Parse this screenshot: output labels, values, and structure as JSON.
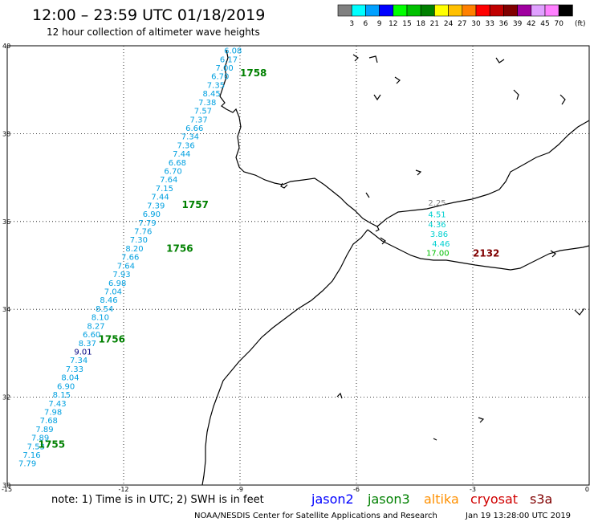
{
  "header": {
    "title": "12:00 – 23:59 UTC 01/18/2019",
    "subtitle": "12 hour collection of altimeter wave heights"
  },
  "colorbar": {
    "unit": "(ft)",
    "bins": [
      {
        "label": "3",
        "color": "#808080"
      },
      {
        "label": "6",
        "color": "#00ffff"
      },
      {
        "label": "9",
        "color": "#00a0ff"
      },
      {
        "label": "12",
        "color": "#0000ff"
      },
      {
        "label": "15",
        "color": "#00ff00"
      },
      {
        "label": "18",
        "color": "#00c000"
      },
      {
        "label": "21",
        "color": "#008000"
      },
      {
        "label": "24",
        "color": "#ffff00"
      },
      {
        "label": "27",
        "color": "#ffc000"
      },
      {
        "label": "30",
        "color": "#ff8000"
      },
      {
        "label": "33",
        "color": "#ff0000"
      },
      {
        "label": "36",
        "color": "#c00000"
      },
      {
        "label": "39",
        "color": "#800000"
      },
      {
        "label": "42",
        "color": "#a000a0"
      },
      {
        "label": "45",
        "color": "#e0a0ff"
      },
      {
        "label": "70",
        "color": "#ff80ff"
      },
      {
        "label": "",
        "color": "#000000"
      }
    ]
  },
  "axes": {
    "y_ticks": [
      "40",
      "38",
      "36",
      "34",
      "32",
      "30"
    ],
    "x_ticks": [
      "-15",
      "-12",
      "-9",
      "-6",
      "-3",
      "0"
    ]
  },
  "tracks": [
    {
      "id": "jason3-track",
      "color": "#00a0e0",
      "values": [
        "6.08",
        "6.17",
        "7.00",
        "6.70",
        "7.35",
        "8.45",
        "7.38",
        "7.57",
        "7.37",
        "6.66",
        "7.34",
        "7.36",
        "7.44",
        "6.68",
        "6.70",
        "7.64",
        "7.15",
        "7.44",
        "7.39",
        "6.90",
        "7.79",
        "7.76",
        "7.30",
        "8.20",
        "7.66",
        "7.64",
        "7.93",
        "6.98",
        "7.04",
        "8.46",
        "8.54",
        "8.10",
        "8.27",
        "6.60",
        "8.37",
        "9.01",
        "7.34",
        "7.33",
        "8.04",
        "6.90",
        "8.15",
        "7.43",
        "7.98",
        "7.68",
        "7.89",
        "7.89",
        "7.53",
        "7.16",
        "7.79"
      ]
    }
  ],
  "track_highlight": {
    "index": 35,
    "color": "#000080"
  },
  "time_labels": [
    {
      "text": "1758",
      "color": "#008000"
    },
    {
      "text": "1757",
      "color": "#008000"
    },
    {
      "text": "1756",
      "color": "#008000"
    },
    {
      "text": "1756",
      "color": "#008000"
    },
    {
      "text": "1755",
      "color": "#008000"
    },
    {
      "text": "2132",
      "color": "#800000"
    }
  ],
  "med_points": [
    {
      "text": "2.25",
      "color": "#808080"
    },
    {
      "text": "4.51",
      "color": "#00d0d0"
    },
    {
      "text": "4.36",
      "color": "#00d0d0"
    },
    {
      "text": "3.86",
      "color": "#00d0d0"
    },
    {
      "text": "4.46",
      "color": "#00d0d0"
    },
    {
      "text": "17.00",
      "color": "#00c000"
    }
  ],
  "footer": {
    "note": "note: 1) Time is in UTC; 2) SWH is in feet",
    "legend": [
      {
        "text": "jason2",
        "color": "#0000ff"
      },
      {
        "text": "jason3",
        "color": "#008000"
      },
      {
        "text": "altika",
        "color": "#ff9000"
      },
      {
        "text": "cryosat",
        "color": "#d00000"
      },
      {
        "text": "s3a",
        "color": "#800000"
      }
    ],
    "credit": "NOAA/NESDIS Center for Satellite Applications and Research",
    "timestamp": "Jan 19 13:28:00 UTC 2019"
  }
}
